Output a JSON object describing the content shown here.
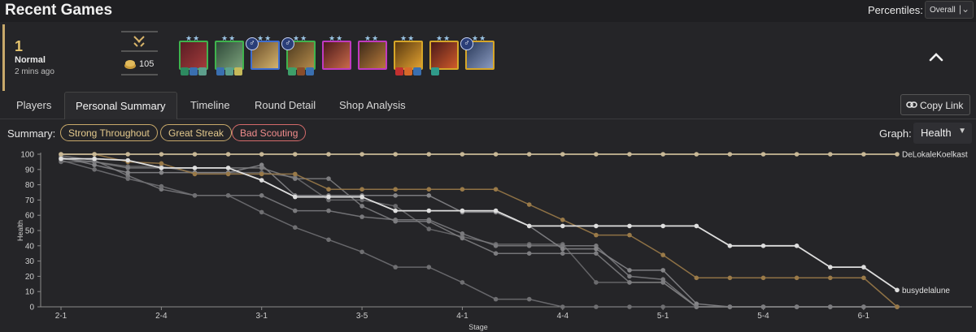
{
  "header": {
    "title": "Recent Games",
    "percentiles_label": "Percentiles:",
    "percentiles_value": "Overall"
  },
  "game": {
    "placement": "1",
    "mode": "Normal",
    "time_ago": "2 mins ago",
    "gold": "105"
  },
  "units": [
    {
      "stars": "★★",
      "border": "#3fb44d",
      "colors": [
        "#5a1d24",
        "#a23b3b"
      ],
      "items": [
        "#2d8a60",
        "#3a6fb0",
        "#5d9e8c"
      ]
    },
    {
      "stars": "★★",
      "border": "#3fb44d",
      "colors": [
        "#2f4a3a",
        "#7aa07a"
      ],
      "items": [
        "#3a6fb0",
        "#5d9e8c",
        "#c6b95a"
      ]
    },
    {
      "stars": "★★",
      "border": "#3f6ed0",
      "colors": [
        "#6a4d2a",
        "#d3b36d"
      ],
      "items": []
    },
    {
      "stars": "★★",
      "border": "#3fb44d",
      "colors": [
        "#4c3a1f",
        "#b48a4a"
      ],
      "items": [
        "#3e9e6a",
        "#8a4d2a",
        "#3a6fb0"
      ]
    },
    {
      "stars": "★★",
      "border": "#c03ac0",
      "colors": [
        "#4a1a1a",
        "#c96a4a"
      ],
      "items": []
    },
    {
      "stars": "★★",
      "border": "#c03ac0",
      "colors": [
        "#3d2a1a",
        "#b87a3a"
      ],
      "items": []
    },
    {
      "stars": "★★",
      "border": "#d6a628",
      "colors": [
        "#5a3a10",
        "#e0a030"
      ],
      "items": [
        "#c23030",
        "#d66a2a",
        "#3a6fb0"
      ]
    },
    {
      "stars": "★★",
      "border": "#d6a628",
      "colors": [
        "#4a1a1a",
        "#d05a2a"
      ],
      "items": [
        "#2f9a8a"
      ]
    },
    {
      "stars": "★★",
      "border": "#d6a628",
      "colors": [
        "#2a3a5a",
        "#8a9ac0"
      ],
      "items": []
    }
  ],
  "tabs": [
    "Players",
    "Personal Summary",
    "Timeline",
    "Round Detail",
    "Shop Analysis"
  ],
  "active_tab": "Personal Summary",
  "copy_link_label": "Copy Link",
  "summary": {
    "label": "Summary:",
    "badges": [
      "Strong Throughout",
      "Great Streak",
      "Bad Scouting"
    ]
  },
  "graph": {
    "label": "Graph:",
    "value": "Health"
  },
  "chart_data": {
    "type": "line",
    "xlabel": "Stage",
    "ylabel": "Health",
    "ylim": [
      0,
      100
    ],
    "yticks": [
      0,
      10,
      20,
      30,
      40,
      50,
      60,
      70,
      80,
      90,
      100
    ],
    "xtick_labels": [
      "2-1",
      "2-4",
      "3-1",
      "3-5",
      "4-1",
      "4-4",
      "5-1",
      "5-4",
      "6-1"
    ],
    "x_count": 26,
    "series": [
      {
        "name": "DeLokaleKoelkast",
        "color": "#c8b896",
        "values": [
          100,
          100,
          100,
          100,
          100,
          100,
          100,
          100,
          100,
          100,
          100,
          100,
          100,
          100,
          100,
          100,
          100,
          100,
          100,
          100,
          100,
          100,
          100,
          100,
          100,
          100
        ]
      },
      {
        "name": "busydelalune",
        "color": "#dedede",
        "values": [
          97,
          97,
          96,
          91,
          91,
          91,
          83,
          72,
          72,
          72,
          63,
          63,
          63,
          63,
          53,
          53,
          53,
          53,
          53,
          53,
          40,
          40,
          40,
          26,
          26,
          11
        ]
      },
      {
        "color": "#9a7a48",
        "values": [
          100,
          100,
          95,
          94,
          87,
          87,
          87,
          87,
          77,
          77,
          77,
          77,
          77,
          77,
          67,
          57,
          47,
          47,
          34,
          19,
          19,
          19,
          19,
          19,
          19,
          0
        ]
      },
      {
        "color": "#7d7d80",
        "values": [
          97,
          95,
          91,
          91,
          91,
          91,
          91,
          84,
          84,
          66,
          56,
          56,
          45,
          35,
          35,
          35,
          35,
          16,
          16,
          0,
          0,
          0,
          0,
          0,
          0,
          0
        ]
      },
      {
        "color": "#6f6f72",
        "values": [
          96,
          90,
          84,
          79,
          73,
          73,
          62,
          52,
          44,
          36,
          26,
          26,
          16,
          5,
          5,
          0,
          0,
          0,
          0,
          0,
          0,
          0,
          0,
          0,
          0,
          0
        ]
      },
      {
        "color": "#858588",
        "values": [
          98,
          93,
          88,
          88,
          88,
          88,
          93,
          73,
          73,
          73,
          73,
          73,
          62,
          62,
          53,
          38,
          38,
          24,
          24,
          2,
          0,
          0,
          0,
          0,
          0,
          0
        ]
      },
      {
        "color": "#7a7a7d",
        "values": [
          99,
          96,
          86,
          77,
          73,
          73,
          73,
          63,
          63,
          59,
          57,
          57,
          48,
          40,
          40,
          40,
          40,
          20,
          18,
          0,
          0,
          0,
          0,
          0,
          0,
          0
        ]
      },
      {
        "color": "#6a6a6d",
        "values": [
          95,
          95,
          92,
          92,
          88,
          88,
          88,
          85,
          70,
          70,
          66,
          51,
          46,
          41,
          41,
          41,
          16,
          16,
          16,
          0,
          0,
          0,
          0,
          0,
          0,
          0
        ]
      }
    ]
  }
}
